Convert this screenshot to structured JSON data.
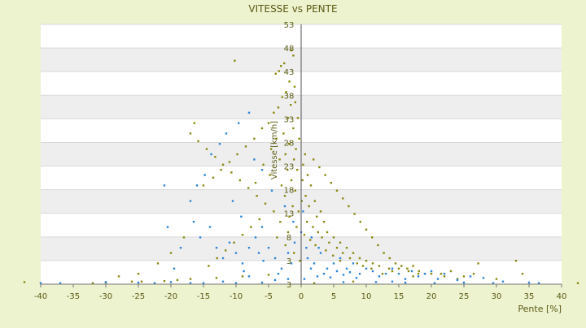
{
  "chart_data": {
    "type": "scatter",
    "title": "VITESSE vs PENTE",
    "xlabel": "Pente [%]",
    "ylabel": "Vitesse [km/h]",
    "xlim": [
      -40,
      40
    ],
    "ylim": [
      3,
      53
    ],
    "x_ticks": [
      "-40",
      "-35",
      "-30",
      "-25",
      "-20",
      "-15",
      "-10",
      "-5",
      "0",
      "5",
      "10",
      "15",
      "20",
      "25",
      "30",
      "35",
      "40"
    ],
    "y_ticks": [
      "3",
      "3",
      "8",
      "13",
      "18",
      "23",
      "28",
      "33",
      "38",
      "43",
      "48",
      "53"
    ],
    "grid": true,
    "legend": "none",
    "colors": {
      "series_a": "#8a8a12",
      "series_b": "#2e86d6",
      "axis_text": "#5b5b14",
      "band": "#eeeeee"
    },
    "series": [
      {
        "color": "#8a8a12",
        "points": [
          [
            -1.2,
            47
          ],
          [
            -1.5,
            48
          ],
          [
            -2.6,
            45.5
          ],
          [
            -3.1,
            45
          ],
          [
            -3.4,
            44
          ],
          [
            -3.9,
            43.5
          ],
          [
            -10.2,
            46
          ],
          [
            -1.8,
            42
          ],
          [
            -1.0,
            41
          ],
          [
            -2.3,
            40
          ],
          [
            -2.9,
            39
          ],
          [
            -0.9,
            38
          ],
          [
            -1.6,
            37.5
          ],
          [
            -3.5,
            37
          ],
          [
            -4.2,
            36
          ],
          [
            -2.0,
            35
          ],
          [
            -0.5,
            35
          ],
          [
            -5.0,
            34
          ],
          [
            -1.2,
            33
          ],
          [
            -2.7,
            32
          ],
          [
            -3.8,
            31
          ],
          [
            -0.3,
            31
          ],
          [
            -1.9,
            30
          ],
          [
            -4.6,
            29
          ],
          [
            -0.8,
            29
          ],
          [
            -2.4,
            28
          ],
          [
            -3.3,
            27
          ],
          [
            -1.1,
            27
          ],
          [
            0.3,
            26
          ],
          [
            -0.6,
            25
          ],
          [
            -2.1,
            25
          ],
          [
            1.0,
            24
          ],
          [
            -1.5,
            23
          ],
          [
            0.2,
            23
          ],
          [
            -3.0,
            22
          ],
          [
            1.5,
            22
          ],
          [
            -0.9,
            21
          ],
          [
            0.7,
            20
          ],
          [
            -2.5,
            20
          ],
          [
            2.1,
            19
          ],
          [
            0.1,
            19
          ],
          [
            -1.3,
            18
          ],
          [
            1.2,
            18
          ],
          [
            3.0,
            17
          ],
          [
            -0.4,
            17
          ],
          [
            2.4,
            16
          ],
          [
            -1.8,
            16
          ],
          [
            0.9,
            15
          ],
          [
            3.5,
            15
          ],
          [
            1.8,
            14
          ],
          [
            -0.7,
            14
          ],
          [
            4.0,
            13
          ],
          [
            2.6,
            13
          ],
          [
            0.5,
            12.5
          ],
          [
            5.0,
            12
          ],
          [
            3.2,
            12
          ],
          [
            1.4,
            11.5
          ],
          [
            6.0,
            11
          ],
          [
            4.3,
            11
          ],
          [
            2.2,
            10.5
          ],
          [
            7.0,
            10
          ],
          [
            5.5,
            10
          ],
          [
            3.8,
            9.5
          ],
          [
            8.0,
            9
          ],
          [
            6.4,
            9
          ],
          [
            4.9,
            8.5
          ],
          [
            9.0,
            8
          ],
          [
            7.5,
            8
          ],
          [
            6.0,
            7.5
          ],
          [
            10.0,
            7.5
          ],
          [
            8.6,
            7
          ],
          [
            11.0,
            7
          ],
          [
            9.5,
            6.5
          ],
          [
            12.0,
            6.5
          ],
          [
            13.5,
            6
          ],
          [
            10.8,
            6
          ],
          [
            15.0,
            6
          ],
          [
            14.0,
            5.5
          ],
          [
            16.5,
            5.5
          ],
          [
            18.0,
            5
          ],
          [
            12.5,
            5
          ],
          [
            20.0,
            5
          ],
          [
            21.5,
            5
          ],
          [
            17.2,
            4.5
          ],
          [
            25.0,
            4.5
          ],
          [
            26.5,
            5
          ],
          [
            27.2,
            7
          ],
          [
            33.0,
            7.5
          ],
          [
            34.0,
            5
          ],
          [
            30.0,
            4
          ],
          [
            -6.0,
            33
          ],
          [
            -7.2,
            31
          ],
          [
            -8.5,
            29.5
          ],
          [
            -9.8,
            28
          ],
          [
            -11.0,
            26.5
          ],
          [
            -12.3,
            25
          ],
          [
            -13.5,
            23.5
          ],
          [
            -15.0,
            22
          ],
          [
            -16.4,
            34
          ],
          [
            -17.0,
            32
          ],
          [
            -15.8,
            30.5
          ],
          [
            -14.5,
            29
          ],
          [
            -13.2,
            27.5
          ],
          [
            -12.0,
            26
          ],
          [
            -10.7,
            24.5
          ],
          [
            -9.4,
            23
          ],
          [
            -8.1,
            21.5
          ],
          [
            -6.8,
            20
          ],
          [
            -5.5,
            18.5
          ],
          [
            -4.2,
            17
          ],
          [
            -6.4,
            15.5
          ],
          [
            -7.7,
            14
          ],
          [
            -9.0,
            12.5
          ],
          [
            -10.3,
            11
          ],
          [
            -11.6,
            9.5
          ],
          [
            -12.9,
            8
          ],
          [
            -14.2,
            6.5
          ],
          [
            -18.0,
            12
          ],
          [
            -20.0,
            9
          ],
          [
            -22.0,
            7
          ],
          [
            -25.0,
            5
          ],
          [
            -26.0,
            3.5
          ],
          [
            -28.0,
            4.5
          ],
          [
            -3.7,
            12
          ],
          [
            -2.4,
            10.5
          ],
          [
            -1.1,
            9
          ],
          [
            -0.2,
            7.5
          ],
          [
            -4.8,
            24
          ],
          [
            -5.8,
            26
          ],
          [
            -7.0,
            22.5
          ],
          [
            -2.0,
            13
          ],
          [
            -3.2,
            15
          ],
          [
            0.6,
            28
          ],
          [
            1.9,
            27
          ],
          [
            2.8,
            25.5
          ],
          [
            3.7,
            24
          ],
          [
            4.6,
            22.5
          ],
          [
            5.5,
            21
          ],
          [
            6.4,
            19.5
          ],
          [
            7.3,
            18
          ],
          [
            8.2,
            16.5
          ],
          [
            9.1,
            15
          ],
          [
            10.0,
            13.5
          ],
          [
            10.9,
            12
          ],
          [
            11.8,
            10.5
          ],
          [
            12.7,
            9
          ],
          [
            13.6,
            8
          ],
          [
            14.5,
            7
          ],
          [
            15.4,
            6.5
          ],
          [
            16.3,
            6
          ],
          [
            17.2,
            6.5
          ],
          [
            18.1,
            5.5
          ],
          [
            19.0,
            5
          ],
          [
            22.0,
            4.5
          ],
          [
            23.0,
            5.5
          ],
          [
            24.0,
            4
          ],
          [
            2.0,
            3.2
          ],
          [
            8.0,
            3.5
          ],
          [
            -32.0,
            3.2
          ],
          [
            -30.0,
            3.3
          ],
          [
            -24.5,
            3.5
          ],
          [
            -21.0,
            3.6
          ],
          [
            -19.0,
            3.8
          ],
          [
            -17.0,
            4
          ],
          [
            -13.0,
            4.2
          ],
          [
            -9.0,
            4.5
          ],
          [
            -5.0,
            4.8
          ],
          [
            -42.5,
            3.4
          ],
          [
            42.5,
            3.2
          ]
        ]
      },
      {
        "color": "#2e86d6",
        "points": [
          [
            -8.0,
            36
          ],
          [
            -9.6,
            34
          ],
          [
            -11.5,
            32
          ],
          [
            -12.5,
            30
          ],
          [
            -13.8,
            28
          ],
          [
            -7.2,
            27
          ],
          [
            -6.0,
            25
          ],
          [
            -16.0,
            22
          ],
          [
            -21.0,
            22
          ],
          [
            -20.5,
            14
          ],
          [
            -17.0,
            19
          ],
          [
            -16.5,
            15
          ],
          [
            -15.5,
            12
          ],
          [
            -14.0,
            14
          ],
          [
            -13.0,
            10
          ],
          [
            -12.0,
            8
          ],
          [
            -11.0,
            11
          ],
          [
            -10.0,
            9
          ],
          [
            -9.0,
            7
          ],
          [
            -8.0,
            10
          ],
          [
            -7.0,
            12
          ],
          [
            -6.0,
            14
          ],
          [
            -5.0,
            10
          ],
          [
            -4.0,
            8
          ],
          [
            -3.0,
            6
          ],
          [
            -2.0,
            9
          ],
          [
            -1.0,
            11
          ],
          [
            0.0,
            13
          ],
          [
            1.0,
            8
          ],
          [
            2.0,
            7
          ],
          [
            3.0,
            9
          ],
          [
            4.0,
            6
          ],
          [
            5.0,
            7
          ],
          [
            6.0,
            8
          ],
          [
            7.0,
            6
          ],
          [
            8.0,
            7
          ],
          [
            9.0,
            5
          ],
          [
            10.0,
            6
          ],
          [
            11.0,
            5.5
          ],
          [
            12.0,
            4.5
          ],
          [
            13.0,
            5
          ],
          [
            14.0,
            6
          ],
          [
            15.0,
            5
          ],
          [
            16.0,
            4
          ],
          [
            17.0,
            5.5
          ],
          [
            18.0,
            4.5
          ],
          [
            19.0,
            5
          ],
          [
            20.0,
            5.5
          ],
          [
            21.0,
            4
          ],
          [
            22.0,
            5
          ],
          [
            24.0,
            3.8
          ],
          [
            26.0,
            4.5
          ],
          [
            28.0,
            4.2
          ],
          [
            31.0,
            3.5
          ],
          [
            35.0,
            3.3
          ],
          [
            36.5,
            3.2
          ],
          [
            -40.0,
            3.2
          ],
          [
            -37.0,
            3.2
          ],
          [
            -30.0,
            3.4
          ],
          [
            -25.0,
            3.3
          ],
          [
            -20.0,
            3.4
          ],
          [
            -17.0,
            3.2
          ],
          [
            -15.0,
            3.2
          ],
          [
            -12.0,
            3.5
          ],
          [
            -10.0,
            3.2
          ],
          [
            -8.0,
            4.5
          ],
          [
            -6.0,
            3.3
          ],
          [
            -4.0,
            3.8
          ],
          [
            -2.0,
            4.0
          ],
          [
            0.5,
            4.0
          ],
          [
            2.5,
            4.5
          ],
          [
            6.5,
            3.4
          ],
          [
            11.5,
            3.4
          ],
          [
            14.0,
            3.5
          ],
          [
            16.0,
            3.3
          ],
          [
            20.5,
            3.2
          ],
          [
            25.0,
            3.3
          ],
          [
            29.5,
            3.2
          ],
          [
            1.5,
            6
          ],
          [
            3.5,
            5
          ],
          [
            4.5,
            4.3
          ],
          [
            5.5,
            5.5
          ],
          [
            6.5,
            4.8
          ],
          [
            7.5,
            5.3
          ],
          [
            8.5,
            4.2
          ],
          [
            -1.5,
            7
          ],
          [
            0.8,
            10
          ],
          [
            -3.5,
            5
          ],
          [
            -6.5,
            9
          ],
          [
            -19.5,
            6
          ],
          [
            -22.5,
            3.2
          ],
          [
            -18.5,
            10
          ],
          [
            -14.8,
            24
          ],
          [
            -10.5,
            19
          ],
          [
            -9.2,
            16
          ],
          [
            -4.5,
            21
          ],
          [
            -2.5,
            18
          ],
          [
            -1.2,
            15
          ],
          [
            0.3,
            17
          ],
          [
            1.6,
            12
          ],
          [
            2.7,
            10
          ],
          [
            -8.8,
            5.5
          ],
          [
            -5.8,
            7.5
          ]
        ]
      }
    ]
  }
}
